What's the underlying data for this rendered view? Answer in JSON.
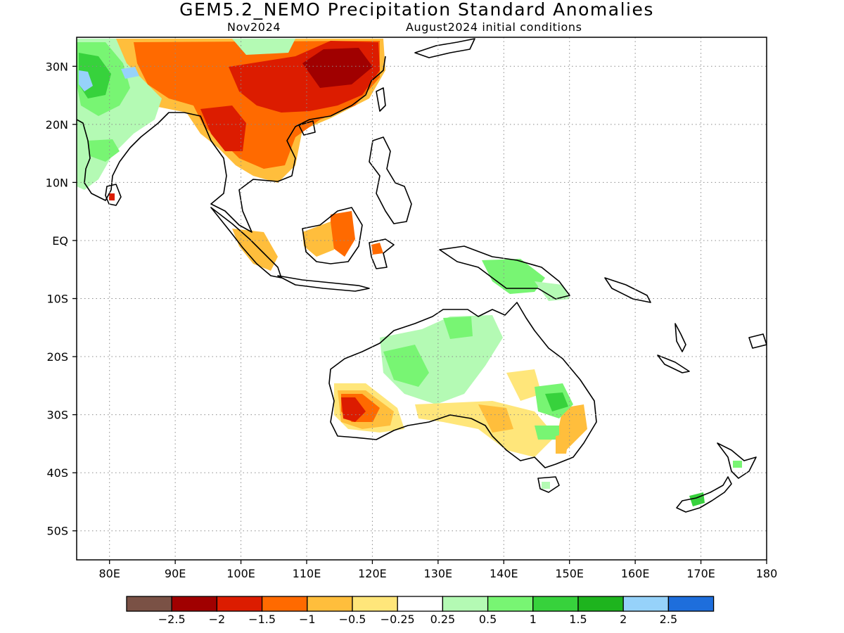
{
  "header": {
    "title": "GEM5.2_NEMO Precipitation Standard Anomalies",
    "valid_month": "Nov2024",
    "initial_conditions": "August2024 initial conditions"
  },
  "map": {
    "lon_range": [
      75,
      180
    ],
    "lat_range": [
      -55,
      35
    ],
    "lon_ticks": [
      80,
      90,
      100,
      110,
      120,
      130,
      140,
      150,
      160,
      170,
      180
    ],
    "lat_ticks": [
      30,
      20,
      10,
      0,
      -10,
      -20,
      -30,
      -40,
      -50
    ],
    "lon_labels": [
      "80E",
      "90E",
      "100E",
      "110E",
      "120E",
      "130E",
      "140E",
      "150E",
      "160E",
      "170E",
      "180"
    ],
    "lat_labels": [
      "30N",
      "20N",
      "10N",
      "EQ",
      "10S",
      "20S",
      "30S",
      "40S",
      "50S"
    ],
    "grid": "dotted"
  },
  "colorbar": {
    "colors": [
      "#7a5145",
      "#a00000",
      "#dc1c00",
      "#ff6a00",
      "#ffbe3c",
      "#ffe67a",
      "#ffffff",
      "#b4fab4",
      "#78f573",
      "#37d23c",
      "#1eb41e",
      "#96d2fa",
      "#1e6edc"
    ],
    "labels": [
      "−2.5",
      "−2",
      "−1.5",
      "−1",
      "−0.5",
      "−0.25",
      "0.25",
      "0.5",
      "1",
      "1.5",
      "2",
      "2.5"
    ]
  }
}
